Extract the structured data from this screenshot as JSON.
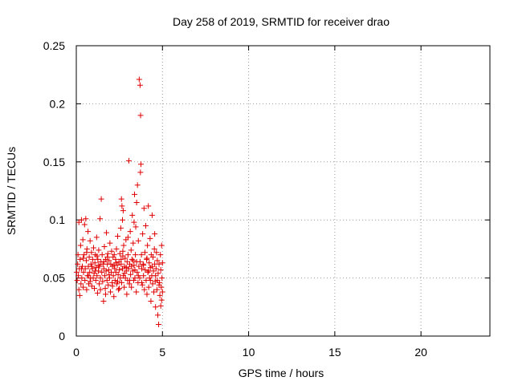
{
  "chart_data": {
    "type": "scatter",
    "title": "Day 258 of 2019, SRMTID for receiver drao",
    "xlabel": "GPS time / hours",
    "ylabel": "SRMTID / TECUs",
    "xlim": [
      0,
      24
    ],
    "ylim": [
      0,
      0.25
    ],
    "xticks": [
      0,
      5,
      10,
      15,
      20
    ],
    "xtick_labels": [
      "0",
      "5",
      "10",
      "15",
      "20"
    ],
    "yticks": [
      0,
      0.05,
      0.1,
      0.15,
      0.2,
      0.25
    ],
    "ytick_labels": [
      "0",
      "0.05",
      "0.1",
      "0.15",
      "0.2",
      "0.25"
    ],
    "grid": true,
    "grid_style": "dotted",
    "legend": "none",
    "marker": "plus",
    "marker_color": "#e00000",
    "series": [
      {
        "points": [
          [
            0.02,
            0.055
          ],
          [
            0.05,
            0.048
          ],
          [
            0.08,
            0.062
          ],
          [
            0.1,
            0.07
          ],
          [
            0.12,
            0.052
          ],
          [
            0.15,
            0.04
          ],
          [
            0.18,
            0.058
          ],
          [
            0.2,
            0.035
          ],
          [
            0.22,
            0.066
          ],
          [
            0.25,
            0.078
          ],
          [
            0.27,
            0.045
          ],
          [
            0.3,
            0.1
          ],
          [
            0.32,
            0.05
          ],
          [
            0.35,
            0.06
          ],
          [
            0.38,
            0.083
          ],
          [
            0.4,
            0.042
          ],
          [
            0.42,
            0.055
          ],
          [
            0.45,
            0.07
          ],
          [
            0.48,
            0.096
          ],
          [
            0.5,
            0.048
          ],
          [
            0.52,
            0.058
          ],
          [
            0.55,
            0.101
          ],
          [
            0.58,
            0.065
          ],
          [
            0.6,
            0.04
          ],
          [
            0.62,
            0.075
          ],
          [
            0.65,
            0.052
          ],
          [
            0.68,
            0.09
          ],
          [
            0.7,
            0.06
          ],
          [
            0.72,
            0.045
          ],
          [
            0.75,
            0.068
          ],
          [
            0.78,
            0.055
          ],
          [
            0.8,
            0.082
          ],
          [
            0.83,
            0.05
          ],
          [
            0.85,
            0.062
          ],
          [
            0.88,
            0.072
          ],
          [
            0.9,
            0.043
          ],
          [
            0.93,
            0.058
          ],
          [
            0.95,
            0.066
          ],
          [
            0.98,
            0.05
          ],
          [
            1.0,
            0.076
          ],
          [
            1.03,
            0.054
          ],
          [
            1.05,
            0.041
          ],
          [
            1.08,
            0.063
          ],
          [
            1.1,
            0.07
          ],
          [
            1.13,
            0.048
          ],
          [
            1.15,
            0.059
          ],
          [
            1.18,
            0.085
          ],
          [
            1.2,
            0.052
          ],
          [
            1.23,
            0.037
          ],
          [
            1.25,
            0.066
          ],
          [
            1.28,
            0.056
          ],
          [
            1.3,
            0.074
          ],
          [
            1.33,
            0.045
          ],
          [
            1.35,
            0.06
          ],
          [
            1.38,
            0.101
          ],
          [
            1.4,
            0.05
          ],
          [
            1.43,
            0.064
          ],
          [
            1.45,
            0.118
          ],
          [
            1.48,
            0.055
          ],
          [
            1.5,
            0.07
          ],
          [
            1.53,
            0.047
          ],
          [
            1.55,
            0.062
          ],
          [
            1.58,
            0.03
          ],
          [
            1.6,
            0.058
          ],
          [
            1.63,
            0.077
          ],
          [
            1.65,
            0.052
          ],
          [
            1.68,
            0.041
          ],
          [
            1.7,
            0.066
          ],
          [
            1.73,
            0.056
          ],
          [
            1.75,
            0.089
          ],
          [
            1.78,
            0.048
          ],
          [
            1.8,
            0.062
          ],
          [
            1.83,
            0.071
          ],
          [
            1.85,
            0.044
          ],
          [
            1.88,
            0.057
          ],
          [
            1.9,
            0.065
          ],
          [
            1.93,
            0.05
          ],
          [
            1.95,
            0.08
          ],
          [
            1.98,
            0.038
          ],
          [
            2.0,
            0.062
          ],
          [
            2.03,
            0.055
          ],
          [
            2.05,
            0.073
          ],
          [
            2.08,
            0.046
          ],
          [
            2.1,
            0.06
          ],
          [
            2.13,
            0.068
          ],
          [
            2.15,
            0.052
          ],
          [
            2.18,
            0.034
          ],
          [
            2.2,
            0.07
          ],
          [
            2.23,
            0.058
          ],
          [
            2.25,
            0.048
          ],
          [
            2.28,
            0.066
          ],
          [
            2.3,
            0.055
          ],
          [
            2.33,
            0.075
          ],
          [
            2.35,
            0.045
          ],
          [
            2.38,
            0.061
          ],
          [
            2.4,
            0.086
          ],
          [
            2.43,
            0.053
          ],
          [
            2.45,
            0.04
          ],
          [
            2.48,
            0.064
          ],
          [
            2.5,
            0.057
          ],
          [
            2.53,
            0.071
          ],
          [
            2.55,
            0.05
          ],
          [
            2.58,
            0.093
          ],
          [
            2.6,
            0.062
          ],
          [
            2.63,
            0.046
          ],
          [
            2.65,
            0.112
          ],
          [
            2.68,
            0.058
          ],
          [
            2.7,
            0.069
          ],
          [
            2.73,
            0.052
          ],
          [
            2.75,
            0.078
          ],
          [
            2.78,
            0.042
          ],
          [
            2.8,
            0.06
          ],
          [
            2.83,
            0.067
          ],
          [
            2.85,
            0.05
          ],
          [
            2.88,
            0.083
          ],
          [
            2.9,
            0.056
          ],
          [
            2.93,
            0.036
          ],
          [
            2.95,
            0.064
          ],
          [
            2.98,
            0.048
          ],
          [
            3.0,
            0.07
          ],
          [
            3.03,
            0.058
          ],
          [
            3.05,
            0.151
          ],
          [
            3.08,
            0.045
          ],
          [
            3.1,
            0.062
          ],
          [
            3.13,
            0.09
          ],
          [
            3.15,
            0.053
          ],
          [
            3.18,
            0.074
          ],
          [
            3.2,
            0.042
          ],
          [
            3.23,
            0.066
          ],
          [
            3.25,
            0.104
          ],
          [
            3.28,
            0.056
          ],
          [
            3.3,
            0.08
          ],
          [
            3.33,
            0.048
          ],
          [
            3.35,
            0.061
          ],
          [
            3.38,
            0.122
          ],
          [
            3.4,
            0.05
          ],
          [
            3.43,
            0.07
          ],
          [
            3.45,
            0.094
          ],
          [
            3.48,
            0.038
          ],
          [
            3.5,
            0.064
          ],
          [
            3.53,
            0.055
          ],
          [
            3.55,
            0.13
          ],
          [
            3.58,
            0.046
          ],
          [
            3.6,
            0.082
          ],
          [
            3.63,
            0.06
          ],
          [
            3.65,
            0.221
          ],
          [
            3.68,
            0.05
          ],
          [
            3.7,
            0.216
          ],
          [
            3.72,
            0.141
          ],
          [
            3.73,
            0.19
          ],
          [
            3.75,
            0.148
          ],
          [
            3.78,
            0.07
          ],
          [
            3.8,
            0.058
          ],
          [
            3.83,
            0.044
          ],
          [
            3.85,
            0.088
          ],
          [
            3.88,
            0.062
          ],
          [
            3.9,
            0.052
          ],
          [
            3.93,
            0.11
          ],
          [
            3.95,
            0.04
          ],
          [
            3.98,
            0.072
          ],
          [
            4.0,
            0.057
          ],
          [
            4.03,
            0.095
          ],
          [
            4.05,
            0.048
          ],
          [
            4.08,
            0.066
          ],
          [
            4.1,
            0.036
          ],
          [
            4.13,
            0.078
          ],
          [
            4.15,
            0.055
          ],
          [
            4.18,
            0.112
          ],
          [
            4.2,
            0.042
          ],
          [
            4.23,
            0.063
          ],
          [
            4.25,
            0.05
          ],
          [
            4.28,
            0.084
          ],
          [
            4.3,
            0.059
          ],
          [
            4.33,
            0.03
          ],
          [
            4.35,
            0.07
          ],
          [
            4.38,
            0.052
          ],
          [
            4.4,
            0.104
          ],
          [
            4.43,
            0.045
          ],
          [
            4.45,
            0.068
          ],
          [
            4.48,
            0.056
          ],
          [
            4.5,
            0.038
          ],
          [
            4.53,
            0.075
          ],
          [
            4.55,
            0.062
          ],
          [
            4.58,
            0.047
          ],
          [
            4.6,
            0.025
          ],
          [
            4.63,
            0.058
          ],
          [
            4.65,
            0.072
          ],
          [
            4.68,
            0.04
          ],
          [
            4.7,
            0.065
          ],
          [
            4.73,
            0.018
          ],
          [
            4.75,
            0.054
          ],
          [
            4.78,
            0.01
          ],
          [
            4.8,
            0.062
          ],
          [
            4.83,
            0.046
          ],
          [
            4.85,
            0.035
          ],
          [
            4.88,
            0.07
          ],
          [
            4.9,
            0.057
          ],
          [
            4.93,
            0.042
          ],
          [
            4.95,
            0.078
          ],
          [
            4.97,
            0.05
          ],
          [
            5.0,
            0.063
          ],
          [
            5.0,
            0.038
          ],
          [
            0.4,
            0.067
          ],
          [
            0.9,
            0.06
          ],
          [
            1.4,
            0.04
          ],
          [
            1.9,
            0.053
          ],
          [
            2.4,
            0.047
          ],
          [
            2.9,
            0.059
          ],
          [
            3.4,
            0.057
          ],
          [
            4.4,
            0.06
          ],
          [
            0.6,
            0.072
          ],
          [
            1.1,
            0.056
          ],
          [
            1.6,
            0.064
          ],
          [
            2.1,
            0.043
          ],
          [
            2.6,
            0.066
          ],
          [
            3.1,
            0.048
          ],
          [
            3.6,
            0.052
          ],
          [
            4.1,
            0.067
          ],
          [
            4.6,
            0.052
          ],
          [
            0.3,
            0.058
          ],
          [
            0.8,
            0.047
          ],
          [
            1.3,
            0.061
          ],
          [
            1.8,
            0.068
          ],
          [
            2.3,
            0.063
          ],
          [
            2.8,
            0.054
          ],
          [
            3.3,
            0.065
          ],
          [
            3.8,
            0.046
          ],
          [
            4.3,
            0.048
          ],
          [
            4.8,
            0.044
          ],
          [
            1.7,
            0.036
          ],
          [
            2.2,
            0.061
          ],
          [
            2.7,
            0.073
          ],
          [
            3.2,
            0.06
          ],
          [
            3.7,
            0.064
          ],
          [
            4.2,
            0.056
          ],
          [
            4.7,
            0.048
          ],
          [
            0.7,
            0.052
          ],
          [
            1.2,
            0.069
          ],
          [
            2.5,
            0.041
          ],
          [
            3.9,
            0.061
          ],
          [
            2.62,
            0.118
          ],
          [
            2.68,
            0.1
          ],
          [
            2.72,
            0.108
          ],
          [
            3.5,
            0.115
          ],
          [
            3.0,
            0.085
          ],
          [
            3.35,
            0.098
          ],
          [
            4.55,
            0.088
          ],
          [
            4.9,
            0.026
          ],
          [
            4.95,
            0.031
          ],
          [
            0.15,
            0.098
          ]
        ]
      }
    ]
  }
}
